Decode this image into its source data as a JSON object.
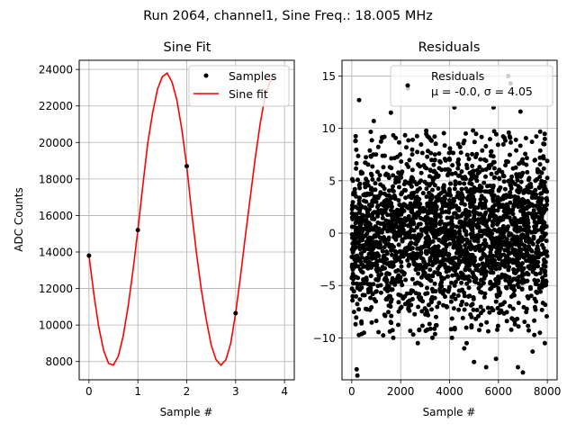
{
  "figure": {
    "suptitle": "Run 2064, channel1, Sine Freq.: 18.005 MHz"
  },
  "chart_data": [
    {
      "type": "line",
      "title": "Sine Fit",
      "xlabel": "Sample #",
      "ylabel": "ADC Counts",
      "xlim": [
        -0.2,
        4.2
      ],
      "ylim": [
        7000,
        24500
      ],
      "xticks": [
        0,
        1,
        2,
        3,
        4
      ],
      "yticks": [
        8000,
        10000,
        12000,
        14000,
        16000,
        18000,
        20000,
        22000,
        24000
      ],
      "grid": true,
      "legend": {
        "placement": "upper right",
        "entries": [
          "Samples",
          "Sine fit"
        ]
      },
      "samples": {
        "name": "Samples",
        "color": "#000000",
        "x": [
          0,
          1,
          2,
          3
        ],
        "y": [
          13800,
          15200,
          18700,
          10650
        ]
      },
      "fit": {
        "name": "Sine fit",
        "color": "#ff0000",
        "x": [
          0,
          0.1,
          0.2,
          0.3,
          0.4,
          0.5,
          0.6,
          0.7,
          0.8,
          0.9,
          1.0,
          1.1,
          1.2,
          1.3,
          1.4,
          1.5,
          1.6,
          1.7,
          1.8,
          1.9,
          2.0,
          2.1,
          2.2,
          2.3,
          2.4,
          2.5,
          2.6,
          2.7,
          2.8,
          2.9,
          3.0,
          3.1,
          3.2,
          3.3,
          3.4,
          3.5,
          3.6,
          3.7,
          3.8
        ],
        "y": [
          13800,
          11700,
          9900,
          8600,
          7900,
          7800,
          8300,
          9400,
          11000,
          13000,
          15200,
          17600,
          19900,
          21600,
          22900,
          23600,
          23800,
          23300,
          22300,
          20700,
          18700,
          16200,
          13900,
          11900,
          10300,
          8900,
          8100,
          7800,
          8100,
          9000,
          10650,
          12700,
          14900,
          17000,
          19100,
          21000,
          22500,
          23300,
          23700
        ]
      }
    },
    {
      "type": "scatter",
      "title": "Residuals",
      "xlabel": "Sample #",
      "ylabel": "",
      "xlim": [
        -400,
        8400
      ],
      "ylim": [
        -14,
        16.5
      ],
      "xticks": [
        0,
        2000,
        4000,
        6000,
        8000
      ],
      "yticks": [
        -10,
        -5,
        0,
        5,
        10,
        15
      ],
      "grid": true,
      "legend": {
        "placement": "upper right",
        "entries": [
          "Residuals",
          "μ = -0.0, σ = 4.05"
        ]
      },
      "series": [
        {
          "name": "Residuals",
          "color": "#000000",
          "n_points": 8000,
          "x_range": [
            0,
            8000
          ],
          "mean": 0.0,
          "std": 4.05,
          "outliers": [
            [
              200,
              -13.0
            ],
            [
              230,
              -13.6
            ],
            [
              300,
              12.7
            ],
            [
              1600,
              11.5
            ],
            [
              1700,
              -10.0
            ],
            [
              2300,
              13.8
            ],
            [
              2700,
              -10.5
            ],
            [
              4100,
              -10.0
            ],
            [
              4600,
              -11.0
            ],
            [
              4700,
              -10.5
            ],
            [
              5000,
              -12.3
            ],
            [
              5500,
              -12.8
            ],
            [
              5900,
              -12.0
            ],
            [
              6400,
              15.0
            ],
            [
              6500,
              14.3
            ],
            [
              6800,
              -12.8
            ],
            [
              7000,
              -13.3
            ],
            [
              7900,
              -10.5
            ],
            [
              5800,
              12.0
            ],
            [
              4200,
              12.0
            ],
            [
              6900,
              11.6
            ],
            [
              7400,
              -11.3
            ],
            [
              3300,
              -10.0
            ],
            [
              900,
              10.7
            ]
          ]
        }
      ]
    }
  ]
}
